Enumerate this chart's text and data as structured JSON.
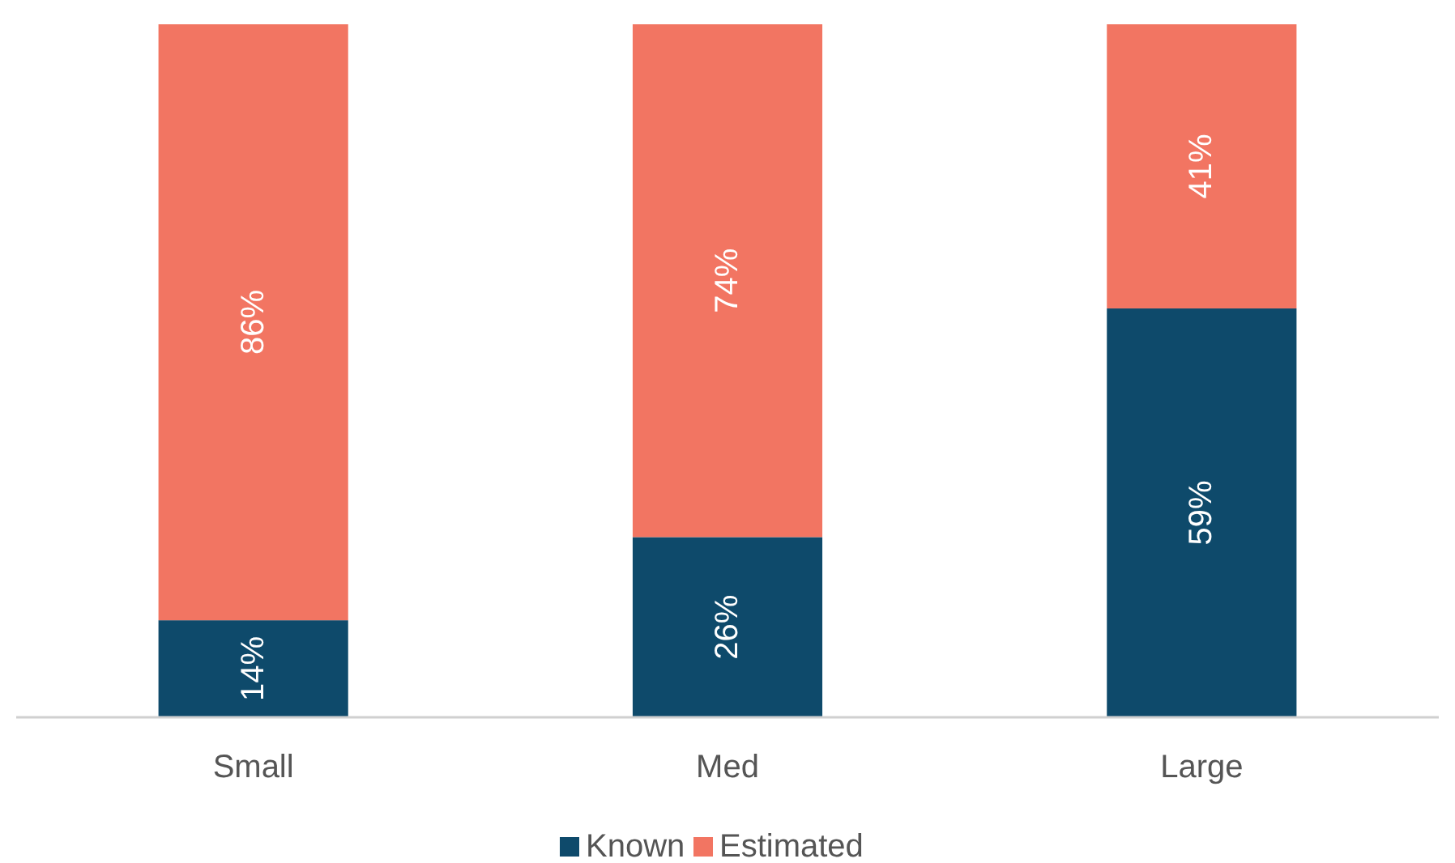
{
  "chart_data": {
    "type": "bar",
    "stacked": true,
    "categories": [
      "Small",
      "Med",
      "Large"
    ],
    "series": [
      {
        "name": "Known",
        "color": "#0e4a6b",
        "values": [
          14,
          26,
          59
        ],
        "value_labels": [
          "14%",
          "26%",
          "59%"
        ]
      },
      {
        "name": "Estimated",
        "color": "#f27562",
        "values": [
          86,
          74,
          41
        ],
        "value_labels": [
          "86%",
          "74%",
          "41%"
        ]
      }
    ],
    "legend": "bottom"
  }
}
